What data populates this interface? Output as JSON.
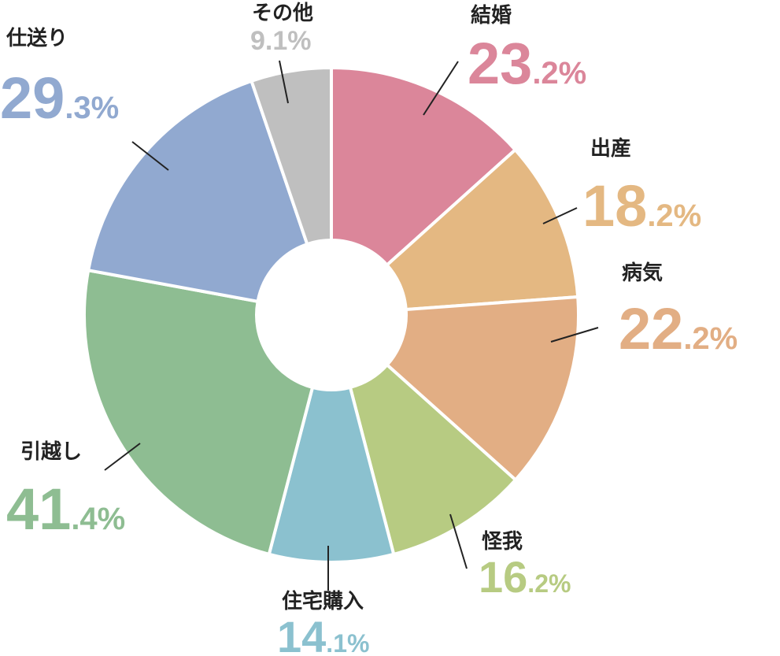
{
  "chart_data": {
    "type": "pie",
    "style": "donut",
    "slices": [
      {
        "label": "結婚",
        "value_text": "23.2",
        "value": 23.2,
        "big": "23",
        "small": ".2%",
        "color": "#db869a"
      },
      {
        "label": "出産",
        "value_text": "18.2",
        "value": 18.2,
        "big": "18",
        "small": ".2%",
        "color": "#e4b882"
      },
      {
        "label": "病気",
        "value_text": "22.2",
        "value": 22.2,
        "big": "22",
        "small": ".2%",
        "color": "#e2ae84"
      },
      {
        "label": "怪我",
        "value_text": "16.2",
        "value": 16.2,
        "big": "16",
        "small": ".2%",
        "color": "#b7cb82"
      },
      {
        "label": "住宅購入",
        "value_text": "14.1",
        "value": 14.1,
        "big": "14",
        "small": ".1%",
        "color": "#8bc1cf"
      },
      {
        "label": "引越し",
        "value_text": "41.4",
        "value": 41.4,
        "big": "41",
        "small": ".4%",
        "color": "#8ebd92"
      },
      {
        "label": "仕送り",
        "value_text": "29.3",
        "value": 29.3,
        "big": "29",
        "small": ".3%",
        "color": "#91a9d0"
      },
      {
        "label": "その他",
        "value_text": "9.1",
        "value": 9.1,
        "big": "9.1%",
        "small": "",
        "color": "#bfbfbf"
      }
    ],
    "unit": "%"
  }
}
